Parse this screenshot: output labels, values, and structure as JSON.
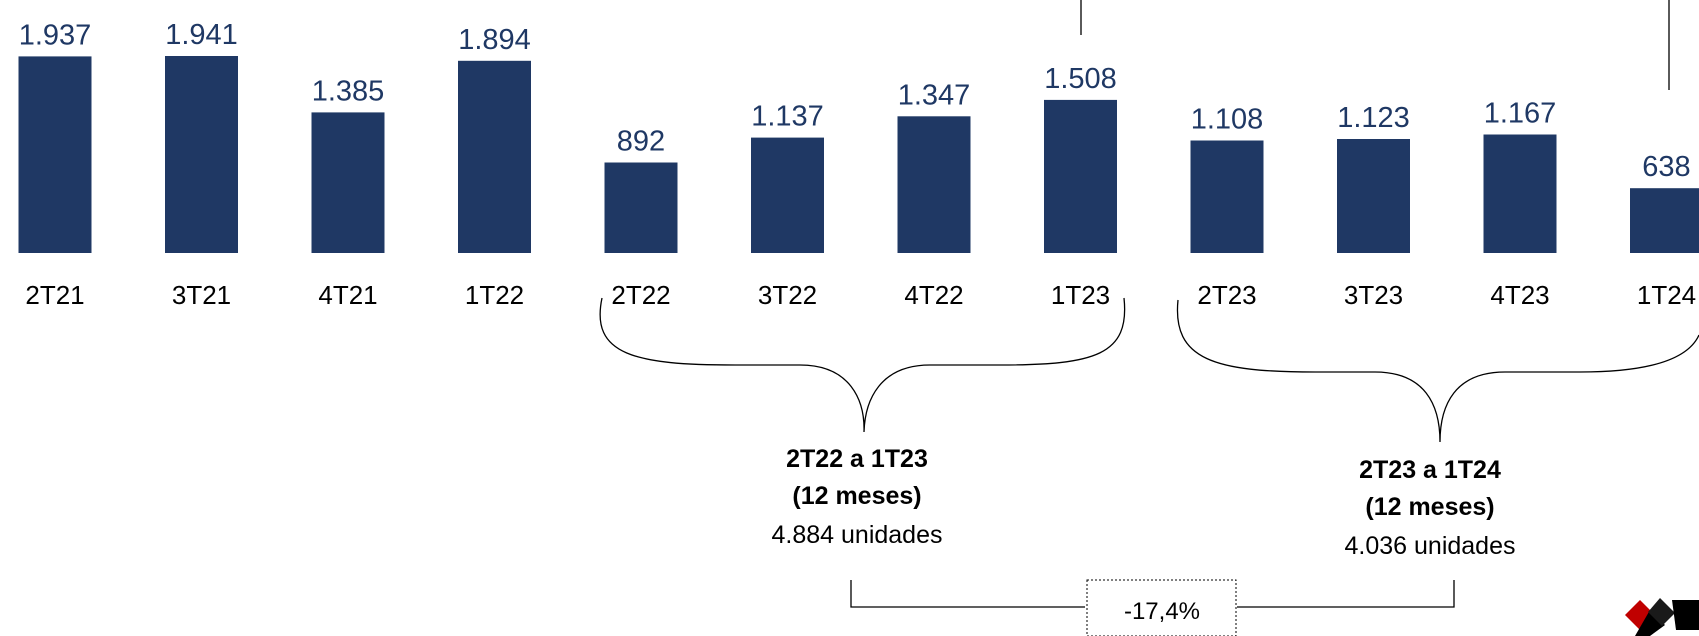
{
  "chart_data": {
    "type": "bar",
    "categories": [
      "2T21",
      "3T21",
      "4T21",
      "1T22",
      "2T22",
      "3T22",
      "4T22",
      "1T23",
      "2T23",
      "3T23",
      "4T23",
      "1T24"
    ],
    "values": [
      1937,
      1941,
      1385,
      1894,
      892,
      1137,
      1347,
      1508,
      1108,
      1123,
      1167,
      638
    ],
    "value_labels": [
      "1.937",
      "1.941",
      "1.385",
      "1.894",
      "892",
      "1.137",
      "1.347",
      "1.508",
      "1.108",
      "1.123",
      "1.167",
      "638"
    ],
    "bar_color": "#1f3864",
    "title": "",
    "xlabel": "",
    "ylabel": "",
    "grid": false,
    "groups": [
      {
        "from": "2T22",
        "to": "1T23",
        "label": "2T22 a 1T23",
        "period": "(12 meses)",
        "total": "4.884 unidades"
      },
      {
        "from": "2T23",
        "to": "1T24",
        "label": "2T23 a 1T24",
        "period": "(12 meses)",
        "total": "4.036 unidades"
      }
    ],
    "comparison": "-17,4%"
  }
}
